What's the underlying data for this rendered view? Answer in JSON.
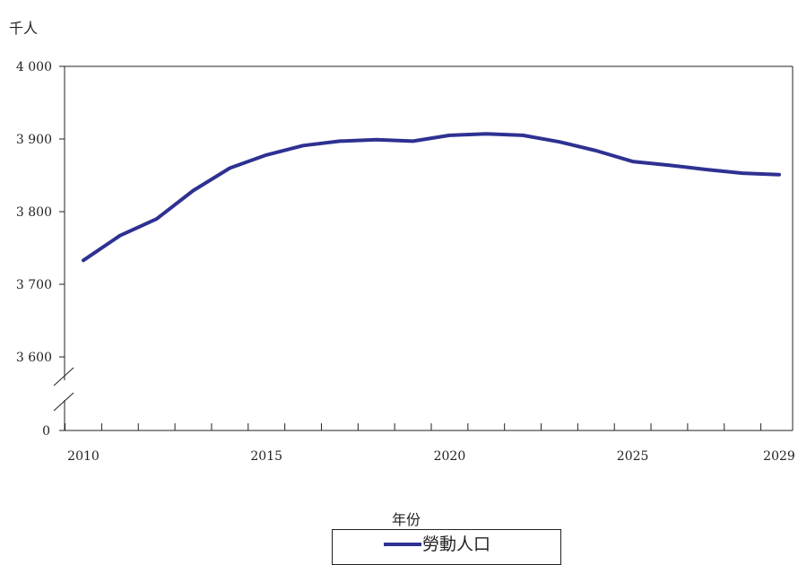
{
  "chart_data": {
    "type": "line",
    "unit_label": "千人",
    "xlabel": "年份",
    "ylim": [
      3600,
      4000
    ],
    "y_ticks": [
      4000,
      3900,
      3800,
      3700,
      3600
    ],
    "y_tick_labels": [
      "4 000",
      "3 900",
      "3 800",
      "3 700",
      "3 600"
    ],
    "y_break_label": "0",
    "x_tick_labels": [
      {
        "year": 2010,
        "label": "2010"
      },
      {
        "year": 2015,
        "label": "2015"
      },
      {
        "year": 2020,
        "label": "2020"
      },
      {
        "year": 2025,
        "label": "2025"
      },
      {
        "year": 2029,
        "label": "2029"
      }
    ],
    "x": [
      2010,
      2011,
      2012,
      2013,
      2014,
      2015,
      2016,
      2017,
      2018,
      2019,
      2020,
      2021,
      2022,
      2023,
      2024,
      2025,
      2026,
      2027,
      2028,
      2029
    ],
    "series": [
      {
        "name": "勞動人口",
        "color": "#2e3192",
        "values": [
          3733,
          3767,
          3790,
          3829,
          3860,
          3878,
          3891,
          3897,
          3899,
          3897,
          3905,
          3907,
          3905,
          3896,
          3884,
          3869,
          3864,
          3858,
          3853,
          3851
        ]
      }
    ],
    "grid": false,
    "legend_position": "bottom-center"
  }
}
